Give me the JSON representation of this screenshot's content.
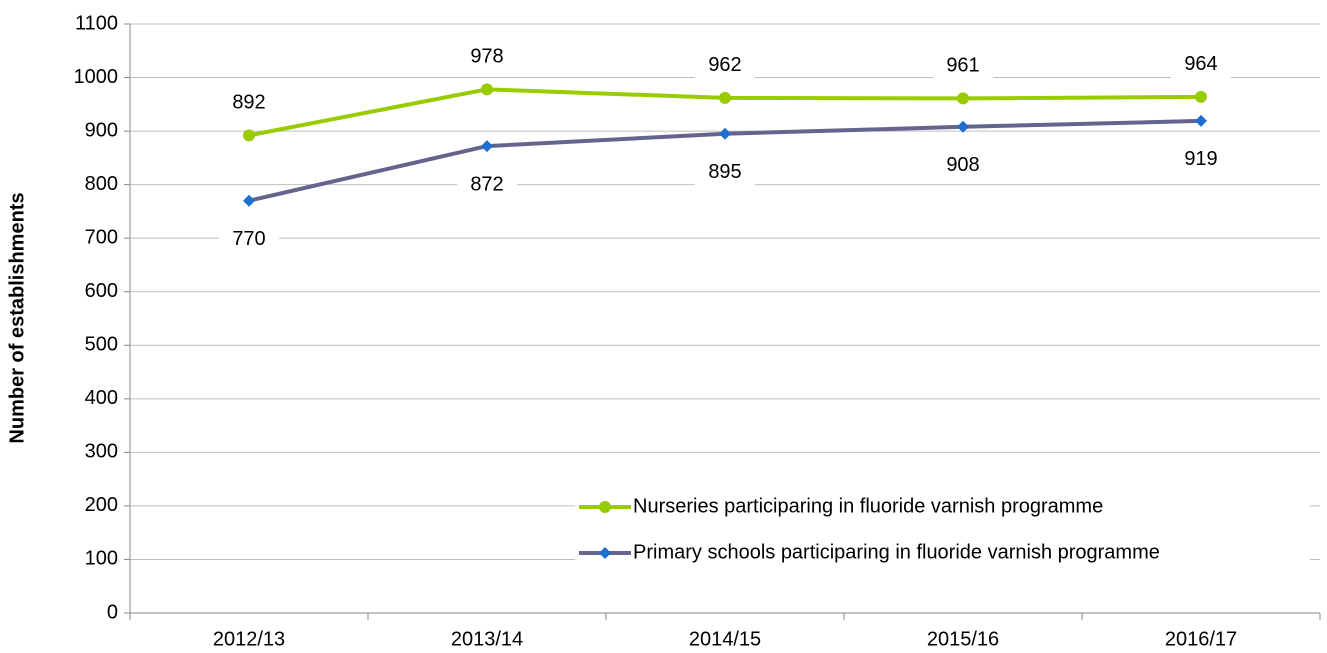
{
  "chart_data": {
    "type": "line",
    "y_label": "Number of establishments",
    "categories": [
      "2012/13",
      "2013/14",
      "2014/15",
      "2015/16",
      "2016/17"
    ],
    "series": [
      {
        "name": "Nurseries participaring in fluoride varnish programme",
        "color": "#99cc00",
        "marker_color": "#99cc00",
        "marker": "circle",
        "values": [
          892,
          978,
          962,
          961,
          964
        ]
      },
      {
        "name": "Primary schools participaring in fluoride varnish programme",
        "color": "#64648f",
        "marker_color": "#1f6fd0",
        "marker": "diamond",
        "values": [
          770,
          872,
          895,
          908,
          919
        ]
      }
    ],
    "ylim": [
      0,
      1100
    ],
    "yticks": [
      0,
      100,
      200,
      300,
      400,
      500,
      600,
      700,
      800,
      900,
      1000,
      1100
    ],
    "grid": true,
    "legend": "lower right"
  }
}
